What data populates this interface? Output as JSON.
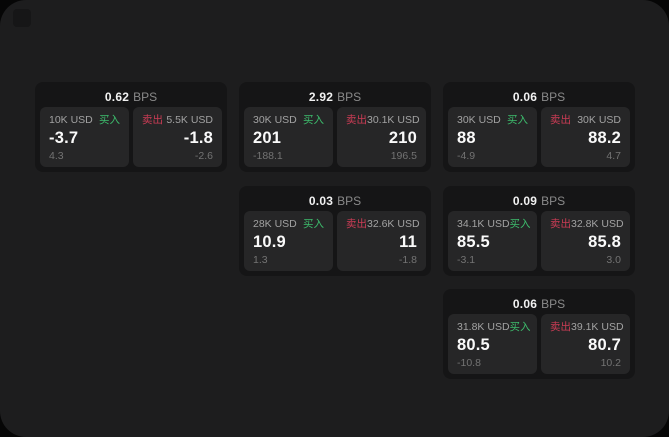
{
  "labels": {
    "buy": "买入",
    "sell": "卖出",
    "bps_unit": "BPS"
  },
  "colors": {
    "buy": "#3dbd6d",
    "sell": "#cc3c55",
    "surface": "#1d1d1e",
    "card": "#151516",
    "panel": "#262627"
  },
  "cards": [
    {
      "bps": "0.62",
      "buy": {
        "amount": "10K USD",
        "price": "-3.7",
        "delta": "4.3"
      },
      "sell": {
        "amount": "5.5K USD",
        "price": "-1.8",
        "delta": "-2.6"
      }
    },
    {
      "bps": "2.92",
      "buy": {
        "amount": "30K USD",
        "price": "201",
        "delta": "-188.1"
      },
      "sell": {
        "amount": "30.1K USD",
        "price": "210",
        "delta": "196.5"
      }
    },
    {
      "bps": "0.06",
      "buy": {
        "amount": "30K USD",
        "price": "88",
        "delta": "-4.9"
      },
      "sell": {
        "amount": "30K USD",
        "price": "88.2",
        "delta": "4.7"
      }
    },
    {
      "bps": "0.03",
      "buy": {
        "amount": "28K USD",
        "price": "10.9",
        "delta": "1.3"
      },
      "sell": {
        "amount": "32.6K USD",
        "price": "11",
        "delta": "-1.8"
      }
    },
    {
      "bps": "0.09",
      "buy": {
        "amount": "34.1K USD",
        "price": "85.5",
        "delta": "-3.1"
      },
      "sell": {
        "amount": "32.8K USD",
        "price": "85.8",
        "delta": "3.0"
      }
    },
    {
      "bps": "0.06",
      "buy": {
        "amount": "31.8K USD",
        "price": "80.5",
        "delta": "-10.8"
      },
      "sell": {
        "amount": "39.1K USD",
        "price": "80.7",
        "delta": "10.2"
      }
    }
  ]
}
